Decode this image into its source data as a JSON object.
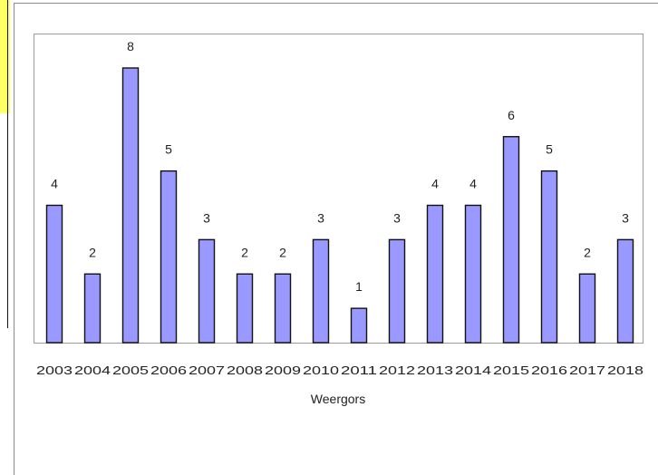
{
  "chart_data": {
    "type": "bar",
    "title": "",
    "xlabel": "Weergors",
    "ylabel": "",
    "categories": [
      "2003",
      "2004",
      "2005",
      "2006",
      "2007",
      "2008",
      "2009",
      "2010",
      "2011",
      "2012",
      "2013",
      "2014",
      "2015",
      "2016",
      "2017",
      "2018"
    ],
    "values": [
      4,
      2,
      8,
      5,
      3,
      2,
      2,
      3,
      1,
      3,
      4,
      4,
      6,
      5,
      2,
      3
    ],
    "ylim": [
      0,
      8
    ],
    "grid": false,
    "bar_color": "#9999ff",
    "bar_edge_color": "#111111",
    "data_labels": true
  }
}
